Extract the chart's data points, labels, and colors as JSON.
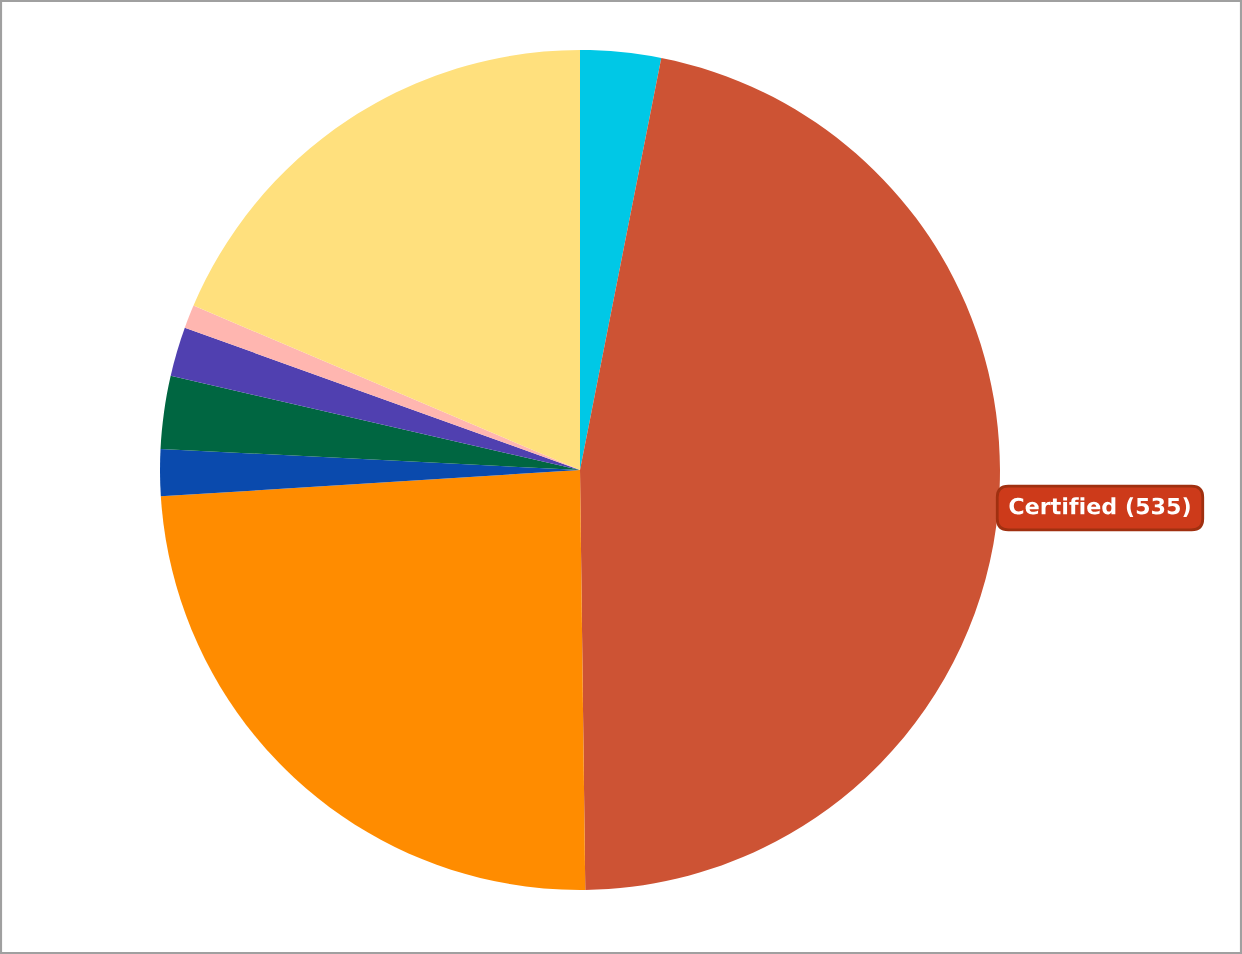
{
  "chart_data": {
    "type": "pie",
    "categories": [
      null,
      null,
      null,
      null,
      null,
      null,
      null,
      null
    ],
    "values": [
      3.1,
      46.7,
      24.2,
      1.8,
      2.8,
      1.9,
      0.9,
      18.6
    ],
    "colors": [
      "#00c8e6",
      "#cd5334",
      "#ff8c00",
      "#0a4aad",
      "#006641",
      "#5040b0",
      "#ffb6b0",
      "#ffe07d"
    ],
    "annotations": [
      "Certified (535)"
    ]
  }
}
